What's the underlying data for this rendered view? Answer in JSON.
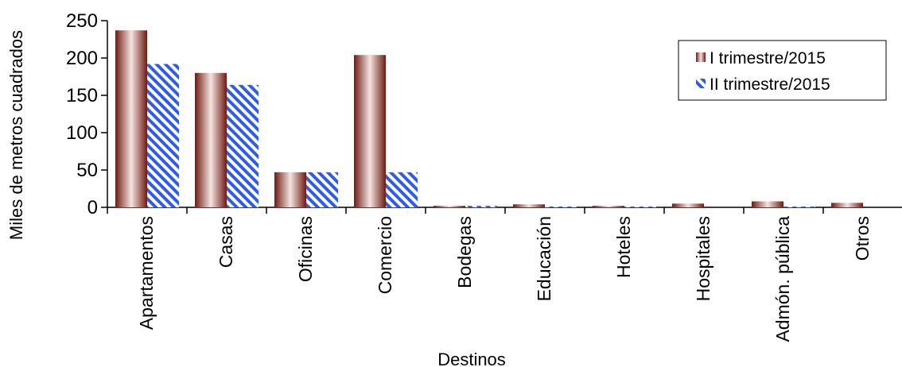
{
  "chart_data": {
    "type": "bar",
    "title": "",
    "xlabel": "Destinos",
    "ylabel": "Miles de metros cuadrados",
    "ylim": [
      0,
      250
    ],
    "yticks": [
      0,
      50,
      100,
      150,
      200,
      250
    ],
    "grid": false,
    "legend_position": "top-right",
    "categories": [
      "Apartamentos",
      "Casas",
      "Oficinas",
      "Comercio",
      "Bodegas",
      "Educación",
      "Hoteles",
      "Hospitales",
      "Admón. pública",
      "Otros"
    ],
    "series": [
      {
        "name": "I trimestre/2015",
        "color": "#8B2A1E",
        "values": [
          237,
          180,
          47,
          204,
          2,
          4,
          2,
          5,
          8,
          6
        ]
      },
      {
        "name": "II trimestre/2015",
        "color": "#2F5BEA",
        "values": [
          192,
          164,
          47,
          47,
          2,
          1,
          1,
          0,
          1,
          0
        ]
      }
    ]
  }
}
